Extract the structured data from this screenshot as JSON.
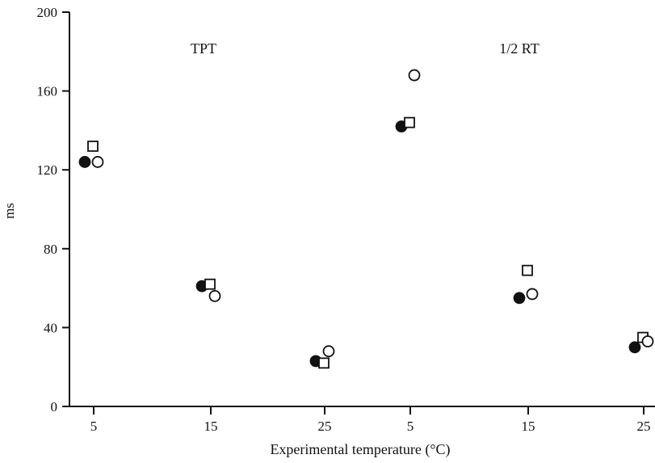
{
  "chart_data": {
    "type": "scatter",
    "xlabel": "Experimental temperature (°C)",
    "ylabel": "ms",
    "ylim": [
      0,
      200
    ],
    "yticks": [
      "0",
      "40",
      "80",
      "120",
      "160",
      "200"
    ],
    "grid": false,
    "panels": [
      {
        "label": "TPT",
        "xticks": [
          "5",
          "15",
          "25"
        ],
        "points": [
          {
            "marker": "filled-circle",
            "x": 5,
            "y": 124
          },
          {
            "marker": "square",
            "x": 5,
            "y": 132
          },
          {
            "marker": "open-circle",
            "x": 5,
            "y": 124
          },
          {
            "marker": "filled-circle",
            "x": 15,
            "y": 61
          },
          {
            "marker": "square",
            "x": 15,
            "y": 62
          },
          {
            "marker": "open-circle",
            "x": 15,
            "y": 56
          },
          {
            "marker": "filled-circle",
            "x": 25,
            "y": 23
          },
          {
            "marker": "square",
            "x": 25,
            "y": 22
          },
          {
            "marker": "open-circle",
            "x": 25,
            "y": 28
          }
        ]
      },
      {
        "label": "1/2 RT",
        "xticks": [
          "5",
          "15",
          "25"
        ],
        "points": [
          {
            "marker": "filled-circle",
            "x": 5,
            "y": 142
          },
          {
            "marker": "square",
            "x": 5,
            "y": 144
          },
          {
            "marker": "open-circle",
            "x": 5,
            "y": 168
          },
          {
            "marker": "filled-circle",
            "x": 15,
            "y": 55
          },
          {
            "marker": "square",
            "x": 15,
            "y": 69
          },
          {
            "marker": "open-circle",
            "x": 15,
            "y": 57
          },
          {
            "marker": "filled-circle",
            "x": 25,
            "y": 30
          },
          {
            "marker": "square",
            "x": 25,
            "y": 35
          },
          {
            "marker": "open-circle",
            "x": 25,
            "y": 33
          }
        ]
      }
    ]
  }
}
